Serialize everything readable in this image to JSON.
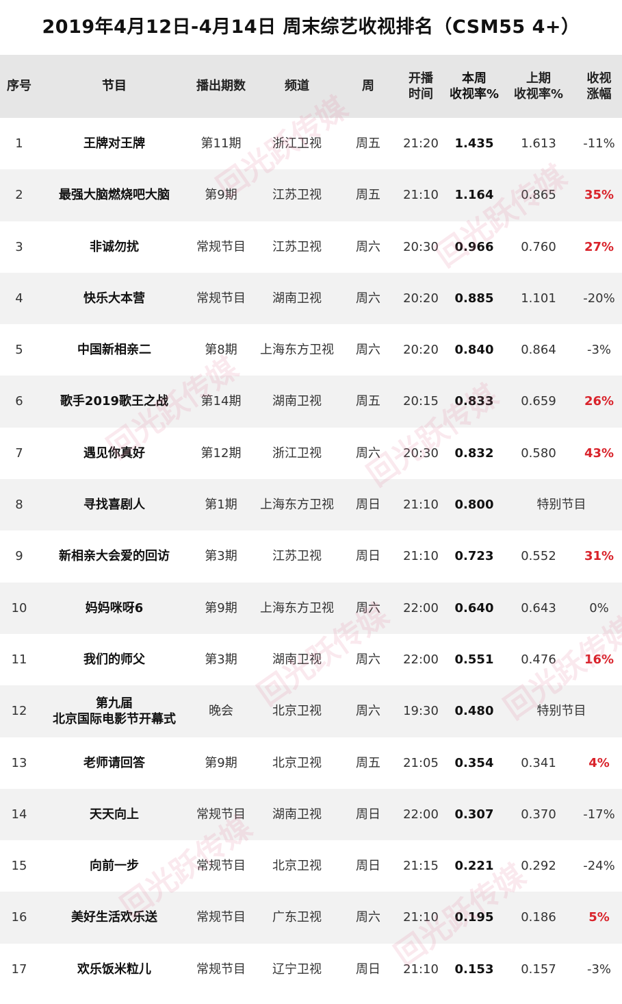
{
  "title": "2019年4月12日-4月14日 周末综艺收视排名（CSM55 4+）",
  "header": {
    "index": "序号",
    "program": "节目",
    "episode": "播出期数",
    "channel": "频道",
    "day": "周",
    "time_l1": "开播",
    "time_l2": "时间",
    "this_l1": "本周",
    "this_l2": "收视率%",
    "last_l1": "上期",
    "last_l2": "收视率%",
    "chg_l1": "收视",
    "chg_l2": "涨幅"
  },
  "watermark_text": "回光跃传媒",
  "rows": [
    {
      "index": "1",
      "program": "王牌对王牌",
      "episode": "第11期",
      "channel": "浙江卫视",
      "day": "周五",
      "time": "21:20",
      "this_week": "1.435",
      "last": "1.613",
      "change": "-11%",
      "up": false
    },
    {
      "index": "2",
      "program": "最强大脑燃烧吧大脑",
      "episode": "第9期",
      "channel": "江苏卫视",
      "day": "周五",
      "time": "21:10",
      "this_week": "1.164",
      "last": "0.865",
      "change": "35%",
      "up": true
    },
    {
      "index": "3",
      "program": "非诚勿扰",
      "episode": "常规节目",
      "channel": "江苏卫视",
      "day": "周六",
      "time": "20:30",
      "this_week": "0.966",
      "last": "0.760",
      "change": "27%",
      "up": true
    },
    {
      "index": "4",
      "program": "快乐大本营",
      "episode": "常规节目",
      "channel": "湖南卫视",
      "day": "周六",
      "time": "20:20",
      "this_week": "0.885",
      "last": "1.101",
      "change": "-20%",
      "up": false
    },
    {
      "index": "5",
      "program": "中国新相亲二",
      "episode": "第8期",
      "channel": "上海东方卫视",
      "day": "周六",
      "time": "20:20",
      "this_week": "0.840",
      "last": "0.864",
      "change": "-3%",
      "up": false
    },
    {
      "index": "6",
      "program": "歌手2019歌王之战",
      "episode": "第14期",
      "channel": "湖南卫视",
      "day": "周五",
      "time": "20:15",
      "this_week": "0.833",
      "last": "0.659",
      "change": "26%",
      "up": true
    },
    {
      "index": "7",
      "program": "遇见你真好",
      "episode": "第12期",
      "channel": "浙江卫视",
      "day": "周六",
      "time": "20:30",
      "this_week": "0.832",
      "last": "0.580",
      "change": "43%",
      "up": true
    },
    {
      "index": "8",
      "program": "寻找喜剧人",
      "episode": "第1期",
      "channel": "上海东方卫视",
      "day": "周日",
      "time": "21:10",
      "this_week": "0.800",
      "special": "特别节目"
    },
    {
      "index": "9",
      "program": "新相亲大会爱的回访",
      "episode": "第3期",
      "channel": "江苏卫视",
      "day": "周日",
      "time": "21:10",
      "this_week": "0.723",
      "last": "0.552",
      "change": "31%",
      "up": true
    },
    {
      "index": "10",
      "program": "妈妈咪呀6",
      "episode": "第9期",
      "channel": "上海东方卫视",
      "day": "周六",
      "time": "22:00",
      "this_week": "0.640",
      "last": "0.643",
      "change": "0%",
      "up": false
    },
    {
      "index": "11",
      "program": "我们的师父",
      "episode": "第3期",
      "channel": "湖南卫视",
      "day": "周六",
      "time": "22:00",
      "this_week": "0.551",
      "last": "0.476",
      "change": "16%",
      "up": true
    },
    {
      "index": "12",
      "program_l1": "第九届",
      "program_l2": "北京国际电影节开幕式",
      "episode": "晚会",
      "channel": "北京卫视",
      "day": "周六",
      "time": "19:30",
      "this_week": "0.480",
      "special": "特别节目"
    },
    {
      "index": "13",
      "program": "老师请回答",
      "episode": "第9期",
      "channel": "北京卫视",
      "day": "周五",
      "time": "21:05",
      "this_week": "0.354",
      "last": "0.341",
      "change": "4%",
      "up": true
    },
    {
      "index": "14",
      "program": "天天向上",
      "episode": "常规节目",
      "channel": "湖南卫视",
      "day": "周日",
      "time": "22:00",
      "this_week": "0.307",
      "last": "0.370",
      "change": "-17%",
      "up": false
    },
    {
      "index": "15",
      "program": "向前一步",
      "episode": "常规节目",
      "channel": "北京卫视",
      "day": "周日",
      "time": "21:15",
      "this_week": "0.221",
      "last": "0.292",
      "change": "-24%",
      "up": false
    },
    {
      "index": "16",
      "program": "美好生活欢乐送",
      "episode": "常规节目",
      "channel": "广东卫视",
      "day": "周六",
      "time": "21:10",
      "this_week": "0.195",
      "last": "0.186",
      "change": "5%",
      "up": true
    },
    {
      "index": "17",
      "program": "欢乐饭米粒儿",
      "episode": "常规节目",
      "channel": "辽宁卫视",
      "day": "周日",
      "time": "21:10",
      "this_week": "0.153",
      "last": "0.157",
      "change": "-3%",
      "up": false
    }
  ]
}
